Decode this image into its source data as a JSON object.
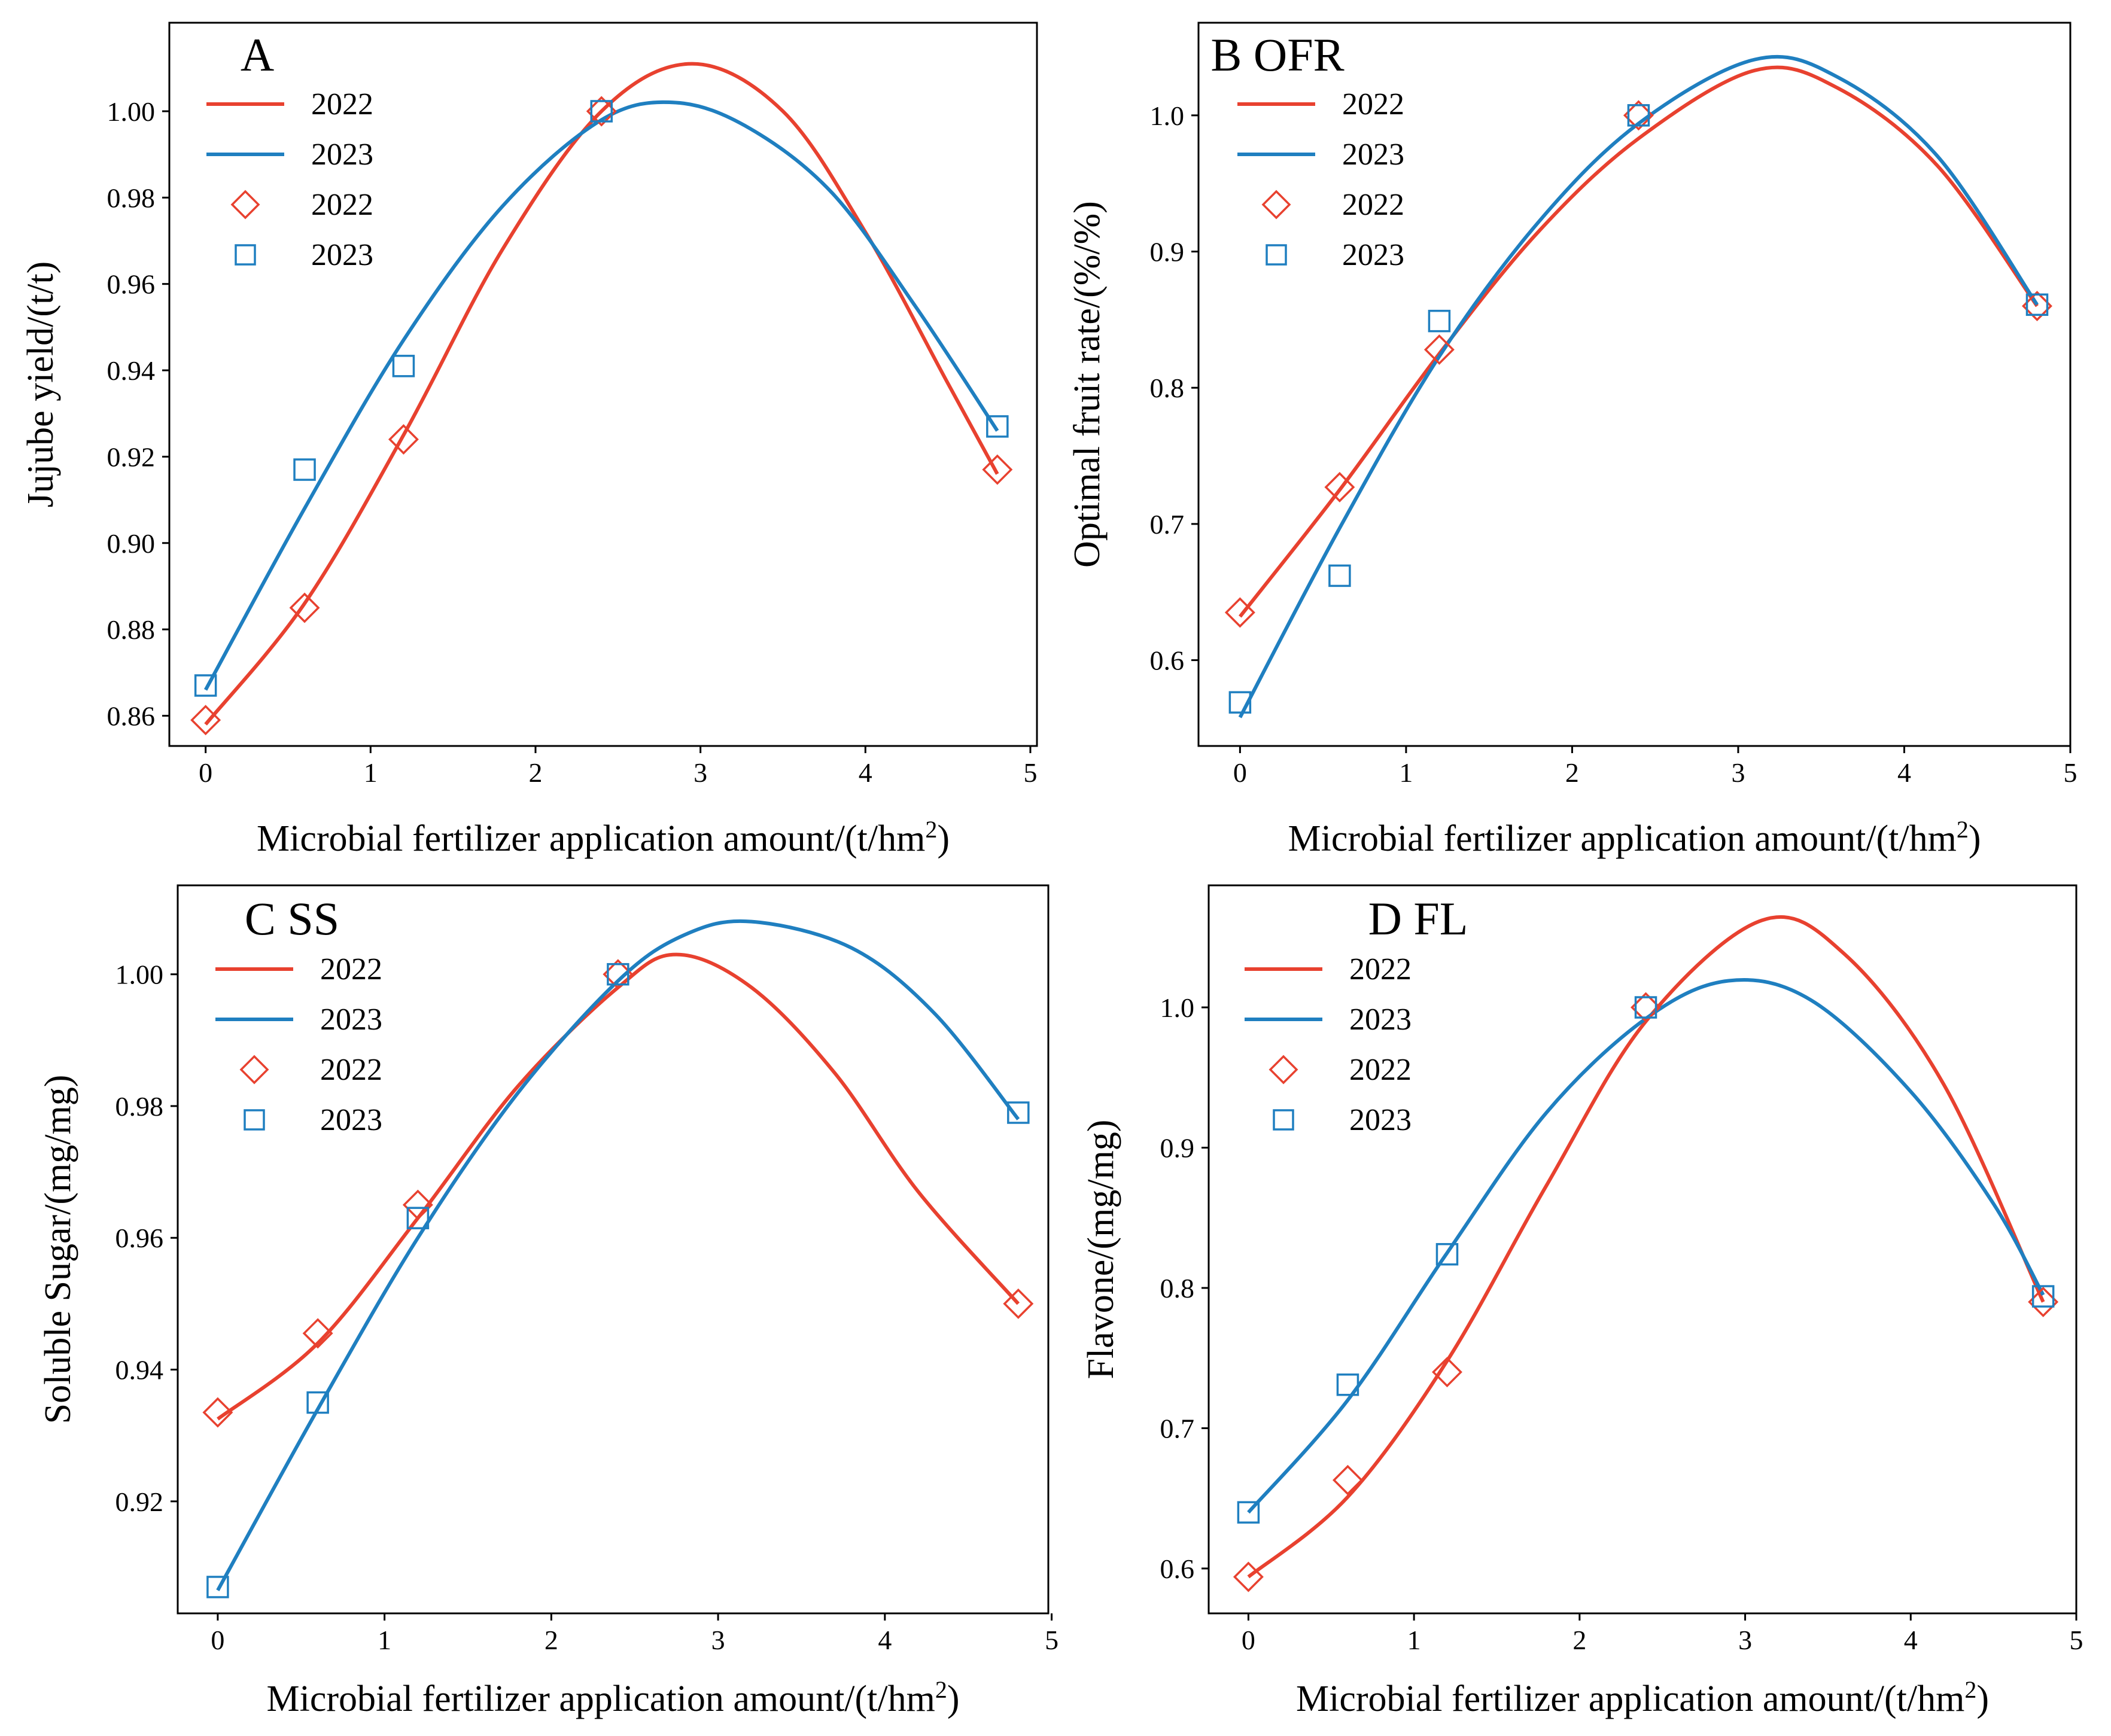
{
  "colors": {
    "series_2022": "#e8412f",
    "series_2023": "#1f7fc0",
    "axis": "#000000"
  },
  "chart_data": [
    {
      "type": "line",
      "panel_label": "A",
      "xlabel": "Microbial fertilizer application amount/(t/hm",
      "xlabel_sup": "2",
      "xlabel_end": ")",
      "ylabel": "Jujube yield/(t/t)",
      "xlim": [
        -0.22,
        5.04
      ],
      "ylim": [
        0.853,
        1.0205
      ],
      "xticks": [
        0,
        1,
        2,
        3,
        4,
        5
      ],
      "yticks": [
        0.86,
        0.88,
        0.9,
        0.92,
        0.94,
        0.96,
        0.98,
        1.0
      ],
      "ytick_labels": [
        "0.86",
        "0.88",
        "0.90",
        "0.92",
        "0.94",
        "0.96",
        "0.98",
        "1.00"
      ],
      "legend": [
        "2022",
        "2023",
        "2022",
        "2023"
      ],
      "x": [
        0,
        0.6,
        1.2,
        2.4,
        4.8
      ],
      "series": [
        {
          "name": "2022",
          "marker": "diamond",
          "points": [
            0.859,
            0.885,
            0.924,
            1.0,
            0.917
          ],
          "fit": [
            [
              0,
              0.858
            ],
            [
              0.6,
              0.886
            ],
            [
              1.2,
              0.925
            ],
            [
              1.8,
              0.968
            ],
            [
              2.4,
              1.0
            ],
            [
              2.95,
              1.011
            ],
            [
              3.5,
              1.0
            ],
            [
              4.0,
              0.972
            ],
            [
              4.5,
              0.937
            ],
            [
              4.8,
              0.916
            ]
          ]
        },
        {
          "name": "2023",
          "marker": "square",
          "points": [
            0.867,
            0.917,
            0.941,
            1.0,
            0.927
          ],
          "fit": [
            [
              0,
              0.866
            ],
            [
              0.6,
              0.908
            ],
            [
              1.2,
              0.947
            ],
            [
              1.8,
              0.978
            ],
            [
              2.4,
              0.998
            ],
            [
              2.85,
              1.002
            ],
            [
              3.3,
              0.996
            ],
            [
              3.8,
              0.981
            ],
            [
              4.3,
              0.955
            ],
            [
              4.8,
              0.926
            ]
          ]
        }
      ]
    },
    {
      "type": "line",
      "panel_label": "B OFR",
      "xlabel": "Microbial fertilizer application amount/(t/hm",
      "xlabel_sup": "2",
      "xlabel_end": ")",
      "ylabel": "Optimal fruit rate/(%/%)",
      "xlim": [
        -0.25,
        5.0
      ],
      "ylim": [
        0.537,
        1.068
      ],
      "xticks": [
        0,
        1,
        2,
        3,
        4,
        5
      ],
      "yticks": [
        0.6,
        0.7,
        0.8,
        0.9,
        1.0
      ],
      "ytick_labels": [
        "0.6",
        "0.7",
        "0.8",
        "0.9",
        "1.0"
      ],
      "legend": [
        "2022",
        "2023",
        "2022",
        "2023"
      ],
      "x": [
        0,
        0.6,
        1.2,
        2.4,
        4.8
      ],
      "series": [
        {
          "name": "2022",
          "marker": "diamond",
          "points": [
            0.635,
            0.727,
            0.828,
            1.0,
            0.86
          ],
          "fit": [
            [
              0,
              0.632
            ],
            [
              0.6,
              0.725
            ],
            [
              1.2,
              0.825
            ],
            [
              1.8,
              0.915
            ],
            [
              2.4,
              0.983
            ],
            [
              3.1,
              1.033
            ],
            [
              3.6,
              1.02
            ],
            [
              4.2,
              0.963
            ],
            [
              4.8,
              0.86
            ]
          ]
        },
        {
          "name": "2023",
          "marker": "square",
          "points": [
            0.569,
            0.662,
            0.849,
            1.0,
            0.861
          ],
          "fit": [
            [
              0,
              0.558
            ],
            [
              0.6,
              0.697
            ],
            [
              1.2,
              0.823
            ],
            [
              1.8,
              0.922
            ],
            [
              2.4,
              0.994
            ],
            [
              3.1,
              1.041
            ],
            [
              3.6,
              1.028
            ],
            [
              4.2,
              0.97
            ],
            [
              4.8,
              0.861
            ]
          ]
        }
      ]
    },
    {
      "type": "line",
      "panel_label": "C SS",
      "xlabel": "Microbial fertilizer application amount/(t/hm",
      "xlabel_sup": "2",
      "xlabel_end": ")",
      "ylabel": "Soluble Sugar/(mg/mg)",
      "xlim": [
        -0.24,
        4.98
      ],
      "ylim": [
        0.903,
        1.0135
      ],
      "xticks": [
        0,
        1,
        2,
        3,
        4,
        5
      ],
      "yticks": [
        0.92,
        0.94,
        0.96,
        0.98,
        1.0
      ],
      "ytick_labels": [
        "0.92",
        "0.94",
        "0.96",
        "0.98",
        "1.00"
      ],
      "legend": [
        "2022",
        "2023",
        "2022",
        "2023"
      ],
      "x": [
        0,
        0.6,
        1.2,
        2.4,
        4.8
      ],
      "series": [
        {
          "name": "2022",
          "marker": "diamond",
          "points": [
            0.9335,
            0.9455,
            0.965,
            1.0,
            0.95
          ],
          "fit": [
            [
              0,
              0.9325
            ],
            [
              0.6,
              0.944
            ],
            [
              1.2,
              0.963
            ],
            [
              1.8,
              0.983
            ],
            [
              2.4,
              0.998
            ],
            [
              2.75,
              1.003
            ],
            [
              3.2,
              0.998
            ],
            [
              3.7,
              0.985
            ],
            [
              4.2,
              0.967
            ],
            [
              4.8,
              0.95
            ]
          ]
        },
        {
          "name": "2023",
          "marker": "square",
          "points": [
            0.907,
            0.935,
            0.963,
            1.0,
            0.979
          ],
          "fit": [
            [
              0,
              0.9065
            ],
            [
              0.6,
              0.934
            ],
            [
              1.2,
              0.96
            ],
            [
              1.8,
              0.982
            ],
            [
              2.4,
              0.999
            ],
            [
              2.8,
              1.006
            ],
            [
              3.2,
              1.008
            ],
            [
              3.8,
              1.004
            ],
            [
              4.3,
              0.994
            ],
            [
              4.8,
              0.978
            ]
          ]
        }
      ]
    },
    {
      "type": "line",
      "panel_label": "D FL",
      "xlabel": "Microbial fertilizer application amount/(t/hm",
      "xlabel_sup": "2",
      "xlabel_end": ")",
      "ylabel": "Flavone/(mg/mg)",
      "xlim": [
        -0.24,
        5.0
      ],
      "ylim": [
        0.568,
        1.087
      ],
      "xticks": [
        0,
        1,
        2,
        3,
        4,
        5
      ],
      "yticks": [
        0.6,
        0.7,
        0.8,
        0.9,
        1.0
      ],
      "ytick_labels": [
        "0.6",
        "0.7",
        "0.8",
        "0.9",
        "1.0"
      ],
      "legend": [
        "2022",
        "2023",
        "2022",
        "2023"
      ],
      "x": [
        0,
        0.6,
        1.2,
        2.4,
        4.8
      ],
      "series": [
        {
          "name": "2022",
          "marker": "diamond",
          "points": [
            0.594,
            0.663,
            0.74,
            1.0,
            0.79
          ],
          "fit": [
            [
              0,
              0.594
            ],
            [
              0.6,
              0.651
            ],
            [
              1.2,
              0.748
            ],
            [
              1.8,
              0.873
            ],
            [
              2.4,
              0.99
            ],
            [
              3.1,
              1.062
            ],
            [
              3.6,
              1.038
            ],
            [
              4.2,
              0.945
            ],
            [
              4.8,
              0.79
            ]
          ]
        },
        {
          "name": "2023",
          "marker": "square",
          "points": [
            0.64,
            0.731,
            0.824,
            1.0,
            0.794
          ],
          "fit": [
            [
              0,
              0.64
            ],
            [
              0.6,
              0.72
            ],
            [
              1.2,
              0.825
            ],
            [
              1.8,
              0.925
            ],
            [
              2.4,
              0.992
            ],
            [
              2.9,
              1.019
            ],
            [
              3.4,
              1.005
            ],
            [
              4.0,
              0.94
            ],
            [
              4.5,
              0.86
            ],
            [
              4.8,
              0.795
            ]
          ]
        }
      ]
    }
  ]
}
